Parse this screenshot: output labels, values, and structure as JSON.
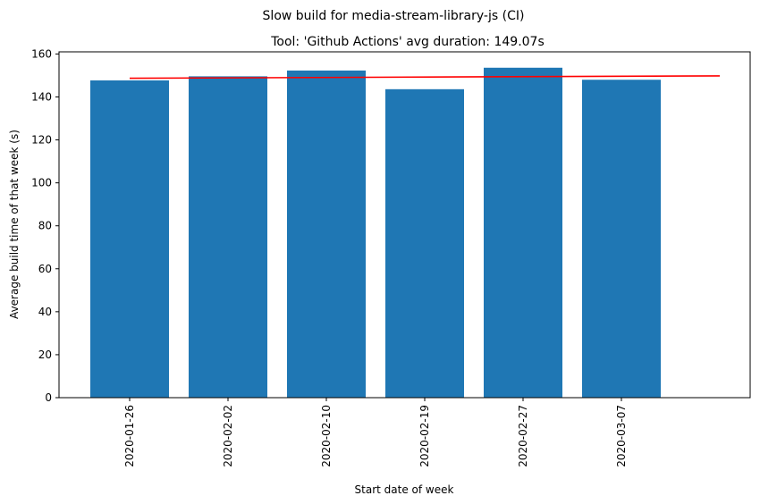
{
  "chart_data": {
    "type": "bar",
    "suptitle": "Slow build for media-stream-library-js (CI)",
    "title": "Tool: 'Github Actions' avg duration: 149.07s",
    "xlabel": "Start date of week",
    "ylabel": "Average build time of that week (s)",
    "categories": [
      "2020-01-26",
      "2020-02-02",
      "2020-02-10",
      "2020-02-19",
      "2020-02-27",
      "2020-03-07"
    ],
    "values": [
      147.7,
      149.6,
      152.3,
      143.6,
      153.6,
      148.0
    ],
    "ylim": [
      0,
      161
    ],
    "yticks": [
      0,
      20,
      40,
      60,
      80,
      100,
      120,
      140,
      160
    ],
    "trend_line": {
      "x": [
        0,
        6
      ],
      "y": [
        148.7,
        149.8
      ]
    },
    "bar_color": "#1f77b4",
    "trend_color": "#ff0000",
    "grid": false,
    "legend": "none"
  }
}
